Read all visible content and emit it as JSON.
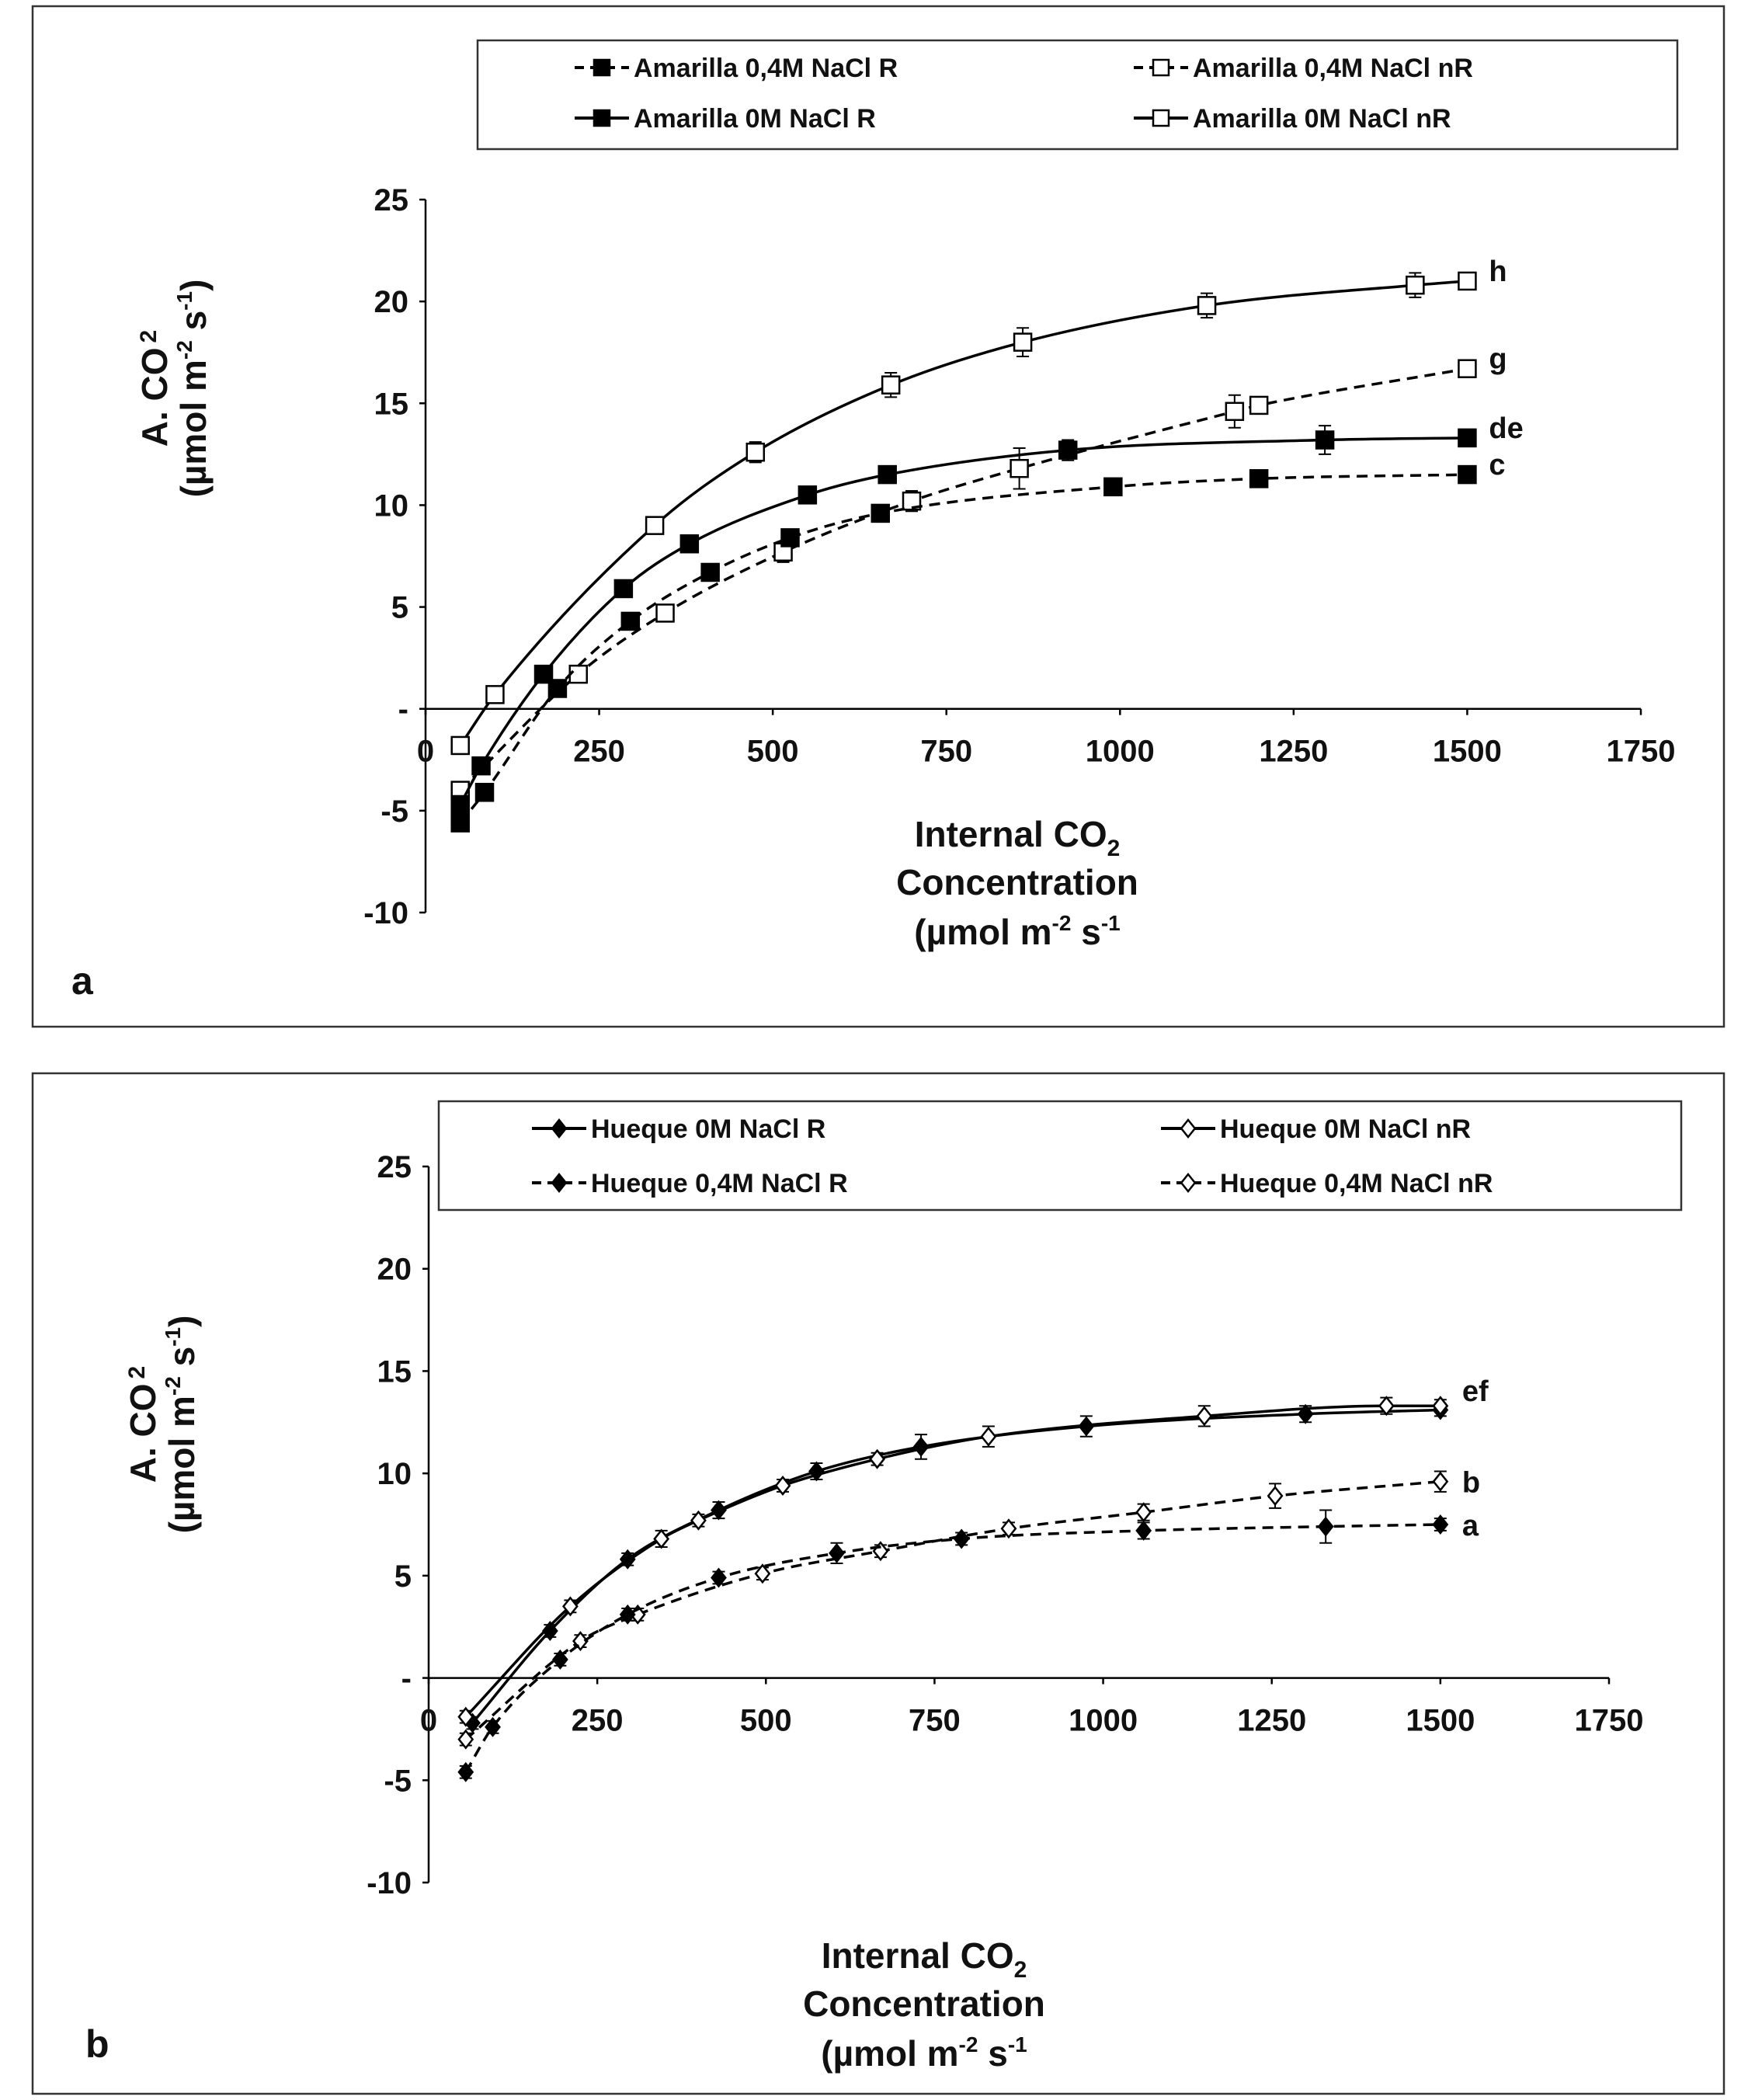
{
  "chart_data": [
    {
      "type": "line",
      "panel_label": "a",
      "xlabel_lines": [
        "Internal CO",
        "Concentration",
        "(µmol m",
        " s"
      ],
      "xlabel_sub": "2",
      "xlabel_sup": "-2",
      "xlabel_sup2": "-1",
      "ylabel_line1": "A. CO",
      "ylabel_sub": "2",
      "ylabel_line2": "(µmol  m",
      "ylabel_sup": "-2",
      "ylabel_mid": " s",
      "ylabel_sup2": "-1",
      "ylabel_end": ")",
      "xlim": [
        0,
        1750
      ],
      "ylim": [
        -10,
        25
      ],
      "x_ticks": [
        "0",
        "250",
        "500",
        "750",
        "1000",
        "1250",
        "1500",
        "1750"
      ],
      "y_ticks": [
        "25",
        "20",
        "15",
        "10",
        "5",
        "-",
        "-5",
        "-10"
      ],
      "legend": [
        {
          "label": "Amarilla 0,4M NaCl  R",
          "style": "dashed",
          "marker": "square-filled"
        },
        {
          "label": "Amarilla 0,4M NaCl  nR",
          "style": "dashed",
          "marker": "square-open"
        },
        {
          "label": "Amarilla 0M NaCl   R",
          "style": "solid",
          "marker": "square-filled"
        },
        {
          "label": "Amarilla 0M NaCl nR",
          "style": "solid",
          "marker": "square-open"
        }
      ],
      "series": [
        {
          "name": "Amarilla 0M NaCl nR",
          "style": "solid",
          "marker": "square-open",
          "end_label": "h",
          "x": [
            50,
            100,
            330,
            475,
            670,
            860,
            1125,
            1425,
            1500
          ],
          "y": [
            -1.8,
            0.7,
            9.0,
            12.6,
            15.9,
            18.0,
            19.8,
            20.8,
            21.0
          ],
          "err": [
            0.3,
            0.3,
            0.4,
            0.5,
            0.6,
            0.7,
            0.6,
            0.6,
            0.4
          ]
        },
        {
          "name": "Amarilla 0,4M NaCl  nR",
          "style": "dashed",
          "marker": "square-open",
          "end_label": "g",
          "x": [
            50,
            220,
            345,
            515,
            700,
            855,
            1165,
            1200,
            1500
          ],
          "y": [
            -4.0,
            1.7,
            4.7,
            7.7,
            10.2,
            11.8,
            14.6,
            14.9,
            16.7
          ],
          "err": [
            0.3,
            0.3,
            0.4,
            0.5,
            0.5,
            1.0,
            0.8,
            0.4,
            0.3
          ]
        },
        {
          "name": "Amarilla 0M NaCl   R",
          "style": "solid",
          "marker": "square-filled",
          "end_label": "de",
          "x": [
            50,
            80,
            170,
            285,
            380,
            550,
            665,
            925,
            1295,
            1500
          ],
          "y": [
            -4.7,
            -2.8,
            1.7,
            5.9,
            8.1,
            10.5,
            11.5,
            12.7,
            13.2,
            13.3
          ],
          "err": [
            0.3,
            0.3,
            0.3,
            0.4,
            0.4,
            0.4,
            0.4,
            0.5,
            0.7,
            0.3
          ]
        },
        {
          "name": "Amarilla 0,4M NaCl  R",
          "style": "dashed",
          "marker": "square-filled",
          "end_label": "c",
          "x": [
            50,
            85,
            190,
            295,
            410,
            525,
            655,
            990,
            1200,
            1500
          ],
          "y": [
            -5.6,
            -4.1,
            1.0,
            4.3,
            6.7,
            8.4,
            9.6,
            10.9,
            11.3,
            11.5
          ],
          "err": [
            0.3,
            0.3,
            0.3,
            0.4,
            0.4,
            0.4,
            0.4,
            0.4,
            0.4,
            0.3
          ]
        }
      ]
    },
    {
      "type": "line",
      "panel_label": "b",
      "xlabel_lines": [
        "Internal CO",
        "Concentration",
        "(µmol m",
        " s"
      ],
      "xlabel_sub": "2",
      "xlabel_sup": "-2",
      "xlabel_sup2": "-1",
      "ylabel_line1": "A. CO",
      "ylabel_sub": "2",
      "ylabel_line2": "(µmol  m",
      "ylabel_sup": "-2",
      "ylabel_mid": " s",
      "ylabel_sup2": "-1",
      "ylabel_end": ")",
      "xlim": [
        0,
        1750
      ],
      "ylim": [
        -10,
        25
      ],
      "x_ticks": [
        "0",
        "250",
        "500",
        "750",
        "1000",
        "1250",
        "1500",
        "1750"
      ],
      "y_ticks": [
        "25",
        "20",
        "15",
        "10",
        "5",
        "-",
        "-5",
        "-10"
      ],
      "legend": [
        {
          "label": "Hueque 0M NaCl   R",
          "style": "solid",
          "marker": "diamond-filled"
        },
        {
          "label": "Hueque 0M NaCl nR",
          "style": "solid",
          "marker": "diamond-open"
        },
        {
          "label": "Hueque 0,4M NaCl  R",
          "style": "dashed",
          "marker": "diamond-filled"
        },
        {
          "label": "Hueque 0,4M NaCl  nR",
          "style": "dashed",
          "marker": "diamond-open"
        }
      ],
      "series": [
        {
          "name": "Hueque 0M NaCl   R",
          "style": "solid",
          "marker": "diamond-filled",
          "end_label": "",
          "x": [
            65,
            180,
            295,
            430,
            575,
            730,
            975,
            1300,
            1500
          ],
          "y": [
            -2.2,
            2.3,
            5.8,
            8.2,
            10.1,
            11.3,
            12.3,
            12.9,
            13.1
          ],
          "err": [
            0.3,
            0.3,
            0.3,
            0.4,
            0.4,
            0.6,
            0.5,
            0.4,
            0.3
          ]
        },
        {
          "name": "Hueque 0M NaCl nR",
          "style": "solid",
          "marker": "diamond-open",
          "end_label": "ef",
          "x": [
            55,
            210,
            345,
            400,
            525,
            665,
            830,
            1150,
            1420,
            1500
          ],
          "y": [
            -1.9,
            3.5,
            6.8,
            7.7,
            9.4,
            10.7,
            11.8,
            12.8,
            13.3,
            13.3
          ],
          "err": [
            0.3,
            0.3,
            0.4,
            0.3,
            0.3,
            0.3,
            0.5,
            0.5,
            0.4,
            0.3
          ]
        },
        {
          "name": "Hueque 0,4M NaCl  nR",
          "style": "dashed",
          "marker": "diamond-open",
          "end_label": "b",
          "x": [
            55,
            225,
            310,
            495,
            670,
            860,
            1060,
            1255,
            1500
          ],
          "y": [
            -3.0,
            1.8,
            3.1,
            5.1,
            6.2,
            7.3,
            8.1,
            8.9,
            9.6
          ],
          "err": [
            0.3,
            0.3,
            0.3,
            0.3,
            0.3,
            0.3,
            0.4,
            0.6,
            0.5
          ]
        },
        {
          "name": "Hueque 0,4M NaCl  R",
          "style": "dashed",
          "marker": "diamond-filled",
          "end_label": "a",
          "x": [
            55,
            95,
            195,
            295,
            430,
            605,
            790,
            1060,
            1330,
            1500
          ],
          "y": [
            -4.6,
            -2.4,
            0.9,
            3.1,
            4.9,
            6.1,
            6.8,
            7.2,
            7.4,
            7.5
          ],
          "err": [
            0.3,
            0.3,
            0.3,
            0.3,
            0.3,
            0.5,
            0.3,
            0.4,
            0.8,
            0.3
          ]
        }
      ]
    }
  ]
}
